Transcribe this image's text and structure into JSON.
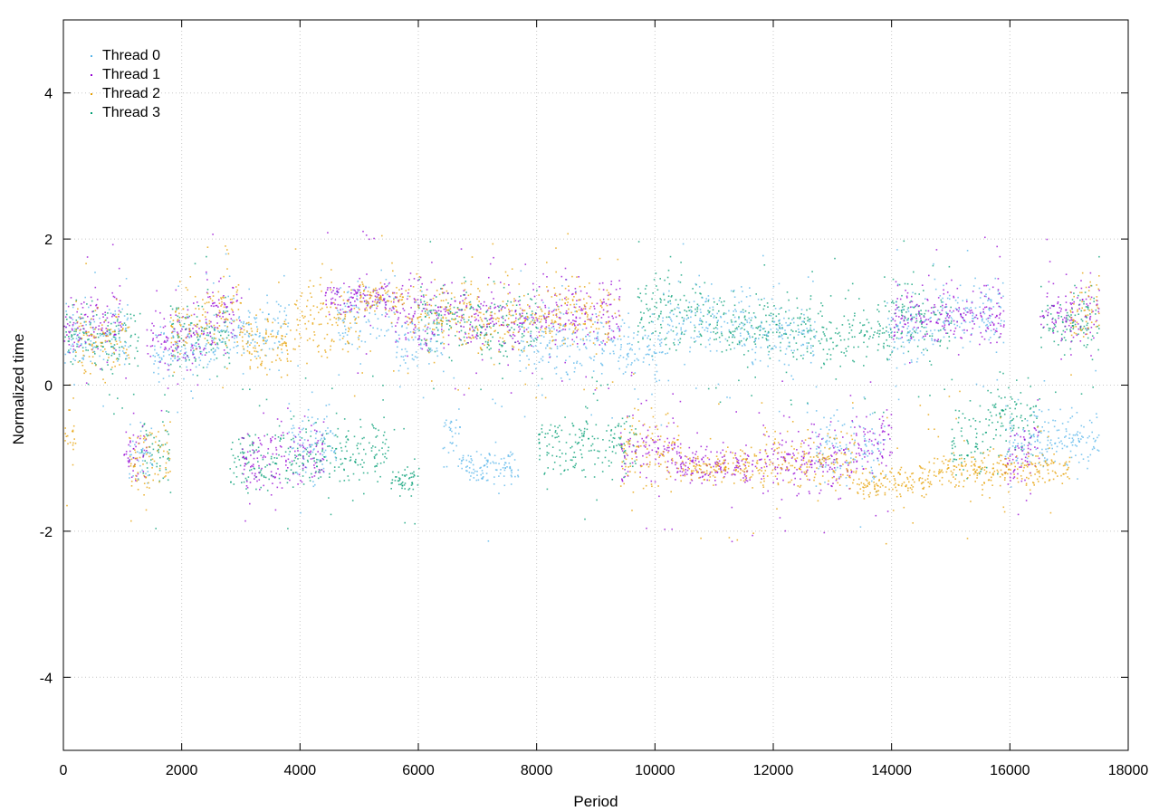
{
  "chart_data": {
    "type": "scatter",
    "title": "",
    "xlabel": "Period",
    "ylabel": "Normalized time",
    "xlim": [
      0,
      18000
    ],
    "ylim": [
      -5,
      5
    ],
    "x_ticks": [
      0,
      2000,
      4000,
      6000,
      8000,
      10000,
      12000,
      14000,
      16000,
      18000
    ],
    "x_tick_labels": [
      "0",
      "2000",
      "4000",
      "6000",
      "8000",
      "10000",
      "12000",
      "14000",
      "16000",
      "18000"
    ],
    "y_ticks": [
      -4,
      -2,
      0,
      2,
      4
    ],
    "y_tick_labels": [
      "-4",
      "-2",
      "0",
      "2",
      "4"
    ],
    "grid": true,
    "legend_position": "top-left",
    "x_range": [
      0,
      17500
    ],
    "series": [
      {
        "name": "Thread 0",
        "color": "#56b4e9",
        "segments": [
          {
            "x": [
              0,
              1100
            ],
            "y": 0.7
          },
          {
            "x": [
              1100,
              1500
            ],
            "y": -0.9
          },
          {
            "x": [
              1500,
              2600
            ],
            "y": 0.5
          },
          {
            "x": [
              2600,
              3800
            ],
            "y": 0.8
          },
          {
            "x": [
              3800,
              4600
            ],
            "y": -0.8
          },
          {
            "x": [
              4600,
              5600
            ],
            "y": 1.0
          },
          {
            "x": [
              5600,
              6400
            ],
            "y": 0.6
          },
          {
            "x": [
              6400,
              6700
            ],
            "y": -0.7
          },
          {
            "x": [
              6700,
              7700
            ],
            "y": -1.1
          },
          {
            "x": [
              7700,
              9400
            ],
            "y": 0.6
          },
          {
            "x": [
              9400,
              10200
            ],
            "y": 0.5
          },
          {
            "x": [
              10200,
              11600
            ],
            "y": 0.9
          },
          {
            "x": [
              11600,
              12700
            ],
            "y": 0.7
          },
          {
            "x": [
              12700,
              13900
            ],
            "y": -0.9
          },
          {
            "x": [
              13900,
              14700
            ],
            "y": 0.8
          },
          {
            "x": [
              14700,
              15900
            ],
            "y": 1.0
          },
          {
            "x": [
              15900,
              16600
            ],
            "y": -0.7
          },
          {
            "x": [
              16600,
              17500
            ],
            "y": -0.7
          }
        ]
      },
      {
        "name": "Thread 1",
        "color": "#9400d3",
        "segments": [
          {
            "x": [
              0,
              1000
            ],
            "y": 0.9
          },
          {
            "x": [
              1000,
              1400
            ],
            "y": -0.9
          },
          {
            "x": [
              1400,
              2400
            ],
            "y": 0.6
          },
          {
            "x": [
              2400,
              3000
            ],
            "y": 1.0
          },
          {
            "x": [
              3000,
              4400
            ],
            "y": -1.0
          },
          {
            "x": [
              4400,
              5600
            ],
            "y": 1.2
          },
          {
            "x": [
              5600,
              6700
            ],
            "y": 1.0
          },
          {
            "x": [
              6700,
              7900
            ],
            "y": 0.9
          },
          {
            "x": [
              7900,
              9400
            ],
            "y": 1.0
          },
          {
            "x": [
              9400,
              10400
            ],
            "y": -0.9
          },
          {
            "x": [
              10400,
              11800
            ],
            "y": -1.1
          },
          {
            "x": [
              11800,
              13300
            ],
            "y": -1.0
          },
          {
            "x": [
              13300,
              14000
            ],
            "y": -0.8
          },
          {
            "x": [
              14000,
              15900
            ],
            "y": 1.0
          },
          {
            "x": [
              15900,
              16500
            ],
            "y": -0.9
          },
          {
            "x": [
              16500,
              17500
            ],
            "y": 1.0
          }
        ]
      },
      {
        "name": "Thread 2",
        "color": "#e69f00",
        "segments": [
          {
            "x": [
              0,
              200
            ],
            "y": -0.7
          },
          {
            "x": [
              200,
              1100
            ],
            "y": 0.6
          },
          {
            "x": [
              1100,
              1800
            ],
            "y": -1.0
          },
          {
            "x": [
              1800,
              2400
            ],
            "y": 0.8
          },
          {
            "x": [
              2400,
              3000
            ],
            "y": 1.0
          },
          {
            "x": [
              3000,
              3900
            ],
            "y": 0.6
          },
          {
            "x": [
              3900,
              5000
            ],
            "y": 0.9
          },
          {
            "x": [
              5000,
              5800
            ],
            "y": 1.2
          },
          {
            "x": [
              5800,
              7000
            ],
            "y": 1.0
          },
          {
            "x": [
              7000,
              8300
            ],
            "y": 0.9
          },
          {
            "x": [
              8300,
              9400
            ],
            "y": 1.0
          },
          {
            "x": [
              9400,
              10400
            ],
            "y": -0.9
          },
          {
            "x": [
              10400,
              11800
            ],
            "y": -1.1
          },
          {
            "x": [
              11800,
              13400
            ],
            "y": -1.0
          },
          {
            "x": [
              13400,
              14700
            ],
            "y": -1.3
          },
          {
            "x": [
              14700,
              17000
            ],
            "y": -1.15
          },
          {
            "x": [
              17000,
              17500
            ],
            "y": 1.0
          }
        ]
      },
      {
        "name": "Thread 3",
        "color": "#009e73",
        "segments": [
          {
            "x": [
              0,
              400
            ],
            "y": 0.7
          },
          {
            "x": [
              400,
              1300
            ],
            "y": 0.6
          },
          {
            "x": [
              1300,
              1800
            ],
            "y": -0.9
          },
          {
            "x": [
              1800,
              2800
            ],
            "y": 0.7
          },
          {
            "x": [
              2800,
              3900
            ],
            "y": -1.0
          },
          {
            "x": [
              3900,
              5500
            ],
            "y": -0.9
          },
          {
            "x": [
              5500,
              6000
            ],
            "y": -1.3
          },
          {
            "x": [
              6000,
              7000
            ],
            "y": 0.9
          },
          {
            "x": [
              7000,
              8000
            ],
            "y": 0.8
          },
          {
            "x": [
              8000,
              9700
            ],
            "y": -0.8
          },
          {
            "x": [
              9700,
              11000
            ],
            "y": 1.0
          },
          {
            "x": [
              11000,
              12800
            ],
            "y": 0.8
          },
          {
            "x": [
              12800,
              14000
            ],
            "y": 0.7
          },
          {
            "x": [
              14000,
              15000
            ],
            "y": 0.9
          },
          {
            "x": [
              15000,
              15600
            ],
            "y": -0.8
          },
          {
            "x": [
              15600,
              16500
            ],
            "y": -0.4
          },
          {
            "x": [
              16500,
              17500
            ],
            "y": 0.9
          }
        ]
      }
    ]
  }
}
